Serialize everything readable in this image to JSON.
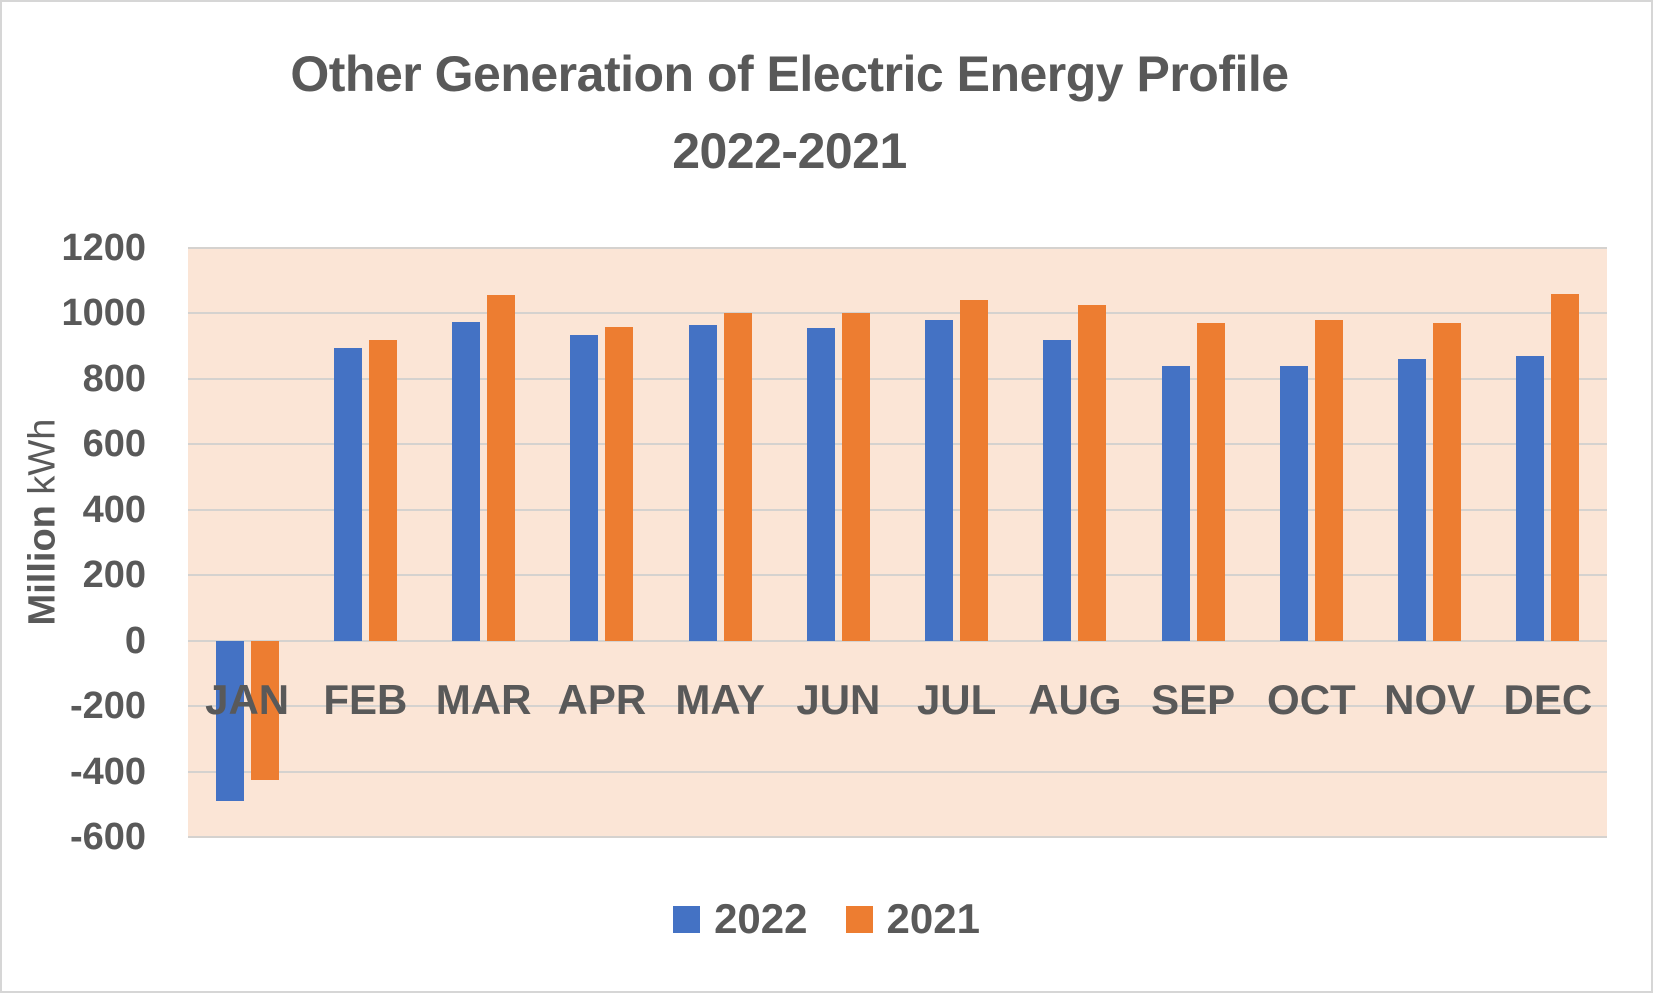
{
  "title": {
    "line1": "Other Generation of Electric Energy Profile",
    "line2": "2022-2021"
  },
  "y_axis": {
    "title_bold": "Million",
    "title_regular": "kWh",
    "ticks": [
      1200,
      1000,
      800,
      600,
      400,
      200,
      0,
      -200,
      -400,
      -600
    ],
    "min": -600,
    "max": 1200
  },
  "legend": [
    {
      "label": "2022",
      "color": "#4472C4"
    },
    {
      "label": "2021",
      "color": "#ED7D31"
    }
  ],
  "colors": {
    "plot_background": "#FBE5D6",
    "gridline": "#D5D2CF",
    "text": "#595959",
    "series_2022": "#4472C4",
    "series_2021": "#ED7D31"
  },
  "chart_data": {
    "type": "bar",
    "title": "Other Generation of Electric Energy Profile 2022-2021",
    "xlabel": "",
    "ylabel": "Million kWh",
    "ylim": [
      -600,
      1200
    ],
    "grid": true,
    "legend_position": "bottom",
    "categories": [
      "JAN",
      "FEB",
      "MAR",
      "APR",
      "MAY",
      "JUN",
      "JUL",
      "AUG",
      "SEP",
      "OCT",
      "NOV",
      "DEC"
    ],
    "series": [
      {
        "name": "2022",
        "color": "#4472C4",
        "values": [
          -490,
          895,
          975,
          935,
          965,
          955,
          980,
          920,
          840,
          840,
          860,
          870
        ]
      },
      {
        "name": "2021",
        "color": "#ED7D31",
        "values": [
          -425,
          920,
          1055,
          960,
          1000,
          1000,
          1040,
          1025,
          970,
          980,
          970,
          1060
        ]
      }
    ]
  }
}
